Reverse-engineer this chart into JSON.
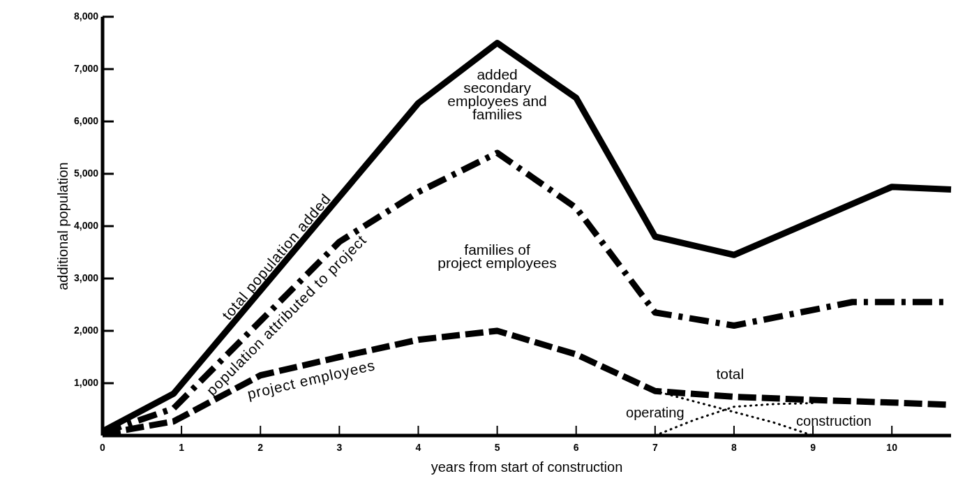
{
  "chart_data": {
    "type": "line",
    "xlabel": "years from start of construction",
    "ylabel": "additional population",
    "xlim": [
      0,
      10.75
    ],
    "xticks": [
      0,
      1,
      2,
      3,
      4,
      5,
      6,
      7,
      8,
      9,
      10
    ],
    "ylim": [
      0,
      8000
    ],
    "yticks": [
      {
        "value": 1000,
        "label": "1,000"
      },
      {
        "value": 2000,
        "label": "2,000"
      },
      {
        "value": 3000,
        "label": "3,000"
      },
      {
        "value": 4000,
        "label": "4,000"
      },
      {
        "value": 5000,
        "label": "5,000"
      },
      {
        "value": 6000,
        "label": "6,000"
      },
      {
        "value": 7000,
        "label": "7,000"
      },
      {
        "value": 8000,
        "label": "8,000"
      }
    ],
    "grid": false,
    "series": [
      {
        "name": "total population added",
        "color": "#000000",
        "line_style": "solid",
        "x": [
          0,
          0.9,
          4,
          5,
          6,
          7,
          8,
          10,
          10.75
        ],
        "values": [
          80,
          800,
          6350,
          7500,
          6450,
          3800,
          3450,
          4750,
          4700
        ]
      },
      {
        "name": "population attributed to project",
        "color": "#000000",
        "line_style": "dashdot",
        "x": [
          0,
          0.9,
          3,
          4,
          5,
          6,
          7,
          8,
          9.5,
          10.7
        ],
        "values": [
          50,
          520,
          3700,
          4650,
          5400,
          4350,
          2350,
          2100,
          2550,
          2550
        ]
      },
      {
        "name": "project employees",
        "color": "#000000",
        "line_style": "dashed",
        "x": [
          0,
          0.9,
          2,
          3,
          4,
          5,
          6,
          7,
          8,
          9,
          10,
          10.7
        ],
        "values": [
          30,
          270,
          1150,
          1500,
          1830,
          2000,
          1550,
          850,
          740,
          680,
          630,
          590
        ]
      },
      {
        "name": "operating",
        "color": "#000000",
        "line_style": "dotted",
        "x": [
          7,
          7.5,
          8,
          8.5,
          9
        ],
        "values": [
          0,
          300,
          550,
          600,
          620
        ]
      },
      {
        "name": "construction",
        "color": "#000000",
        "line_style": "dotted",
        "x": [
          7,
          7.5,
          8,
          8.5,
          9
        ],
        "values": [
          850,
          650,
          450,
          250,
          0
        ]
      }
    ],
    "annotations": [
      "added secondary employees and families",
      "families of project employees",
      "total"
    ]
  }
}
